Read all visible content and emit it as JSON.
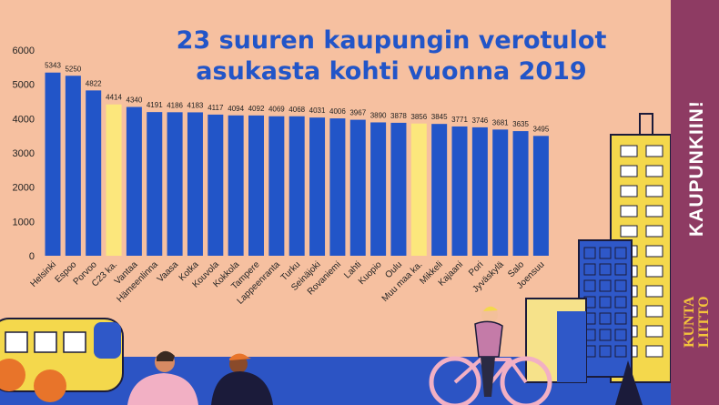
{
  "title": {
    "line1": "23 suuren kaupungin verotulot",
    "line2": "asukasta kohti vuonna 2019"
  },
  "sidebar": {
    "slogan": "KAUPUNKIIN!",
    "logo_line1": "KUNTA",
    "logo_line2": "LIITTO"
  },
  "colors": {
    "background": "#f6c0a0",
    "bar": "#2255c8",
    "bar_highlight": "#fce77c",
    "title": "#2255c8",
    "sidebar": "#8e3b63",
    "logo": "#f4c33c"
  },
  "chart_data": {
    "type": "bar",
    "title": "23 suuren kaupungin verotulot asukasta kohti vuonna 2019",
    "xlabel": "",
    "ylabel": "",
    "ylim": [
      0,
      6000
    ],
    "yticks": [
      0,
      1000,
      2000,
      3000,
      4000,
      5000,
      6000
    ],
    "grid": false,
    "categories": [
      "Helsinki",
      "Espoo",
      "Porvoo",
      "C23 ka.",
      "Vantaa",
      "Hämeenlinna",
      "Vaasa",
      "Kotka",
      "Kouvola",
      "Kokkola",
      "Tampere",
      "Lappeenranta",
      "Turku",
      "Seinäjoki",
      "Rovaniemi",
      "Lahti",
      "Kuopio",
      "Oulu",
      "Muu maa ka.",
      "Mikkeli",
      "Kajaani",
      "Pori",
      "Jyväskylä",
      "Salo",
      "Joensuu"
    ],
    "values": [
      5343,
      5250,
      4822,
      4414,
      4340,
      4191,
      4186,
      4183,
      4117,
      4094,
      4092,
      4069,
      4068,
      4031,
      4006,
      3967,
      3890,
      3878,
      3856,
      3845,
      3771,
      3746,
      3681,
      3635,
      3495
    ],
    "highlighted": [
      "C23 ka.",
      "Muu maa ka."
    ]
  }
}
